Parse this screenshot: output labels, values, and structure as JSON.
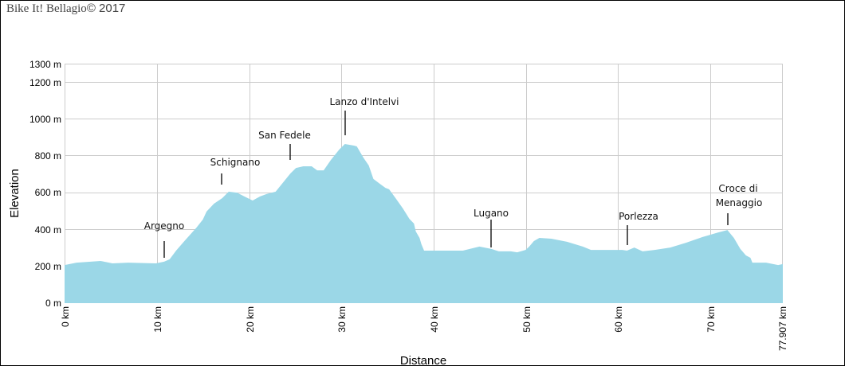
{
  "header": {
    "copyright_brand": "Bike It! Bellagio",
    "copyright_year": "© 2017"
  },
  "colors": {
    "fill": "#9BD7E7",
    "grid": "#cccccc",
    "text": "#000000",
    "border": "#000000"
  },
  "chart_data": {
    "type": "area",
    "title": "",
    "xlabel": "Distance",
    "ylabel": "Elevation",
    "xlim": [
      0,
      77.907
    ],
    "ylim": [
      0,
      1300
    ],
    "grid": true,
    "legend": "none",
    "x_ticks": [
      {
        "value": 0,
        "label": "0 km"
      },
      {
        "value": 10,
        "label": "10 km"
      },
      {
        "value": 20,
        "label": "20 km"
      },
      {
        "value": 30,
        "label": "30 km"
      },
      {
        "value": 40,
        "label": "40 km"
      },
      {
        "value": 50,
        "label": "50 km"
      },
      {
        "value": 60,
        "label": "60 km"
      },
      {
        "value": 70,
        "label": "70 km"
      },
      {
        "value": 77.907,
        "label": "77.907 km"
      }
    ],
    "y_ticks": [
      {
        "value": 0,
        "label": "0 m"
      },
      {
        "value": 200,
        "label": "200 m"
      },
      {
        "value": 400,
        "label": "400 m"
      },
      {
        "value": 600,
        "label": "600 m"
      },
      {
        "value": 800,
        "label": "800 m"
      },
      {
        "value": 1000,
        "label": "1000 m"
      },
      {
        "value": 1200,
        "label": "1200 m"
      },
      {
        "value": 1300,
        "label": "1300 m"
      }
    ],
    "x": [
      0,
      1.3,
      3.9,
      5.2,
      6.9,
      9.9,
      10.8,
      11.4,
      12.1,
      13.0,
      14.3,
      15.0,
      15.4,
      16.2,
      17.1,
      17.8,
      18.7,
      19.5,
      20.4,
      21.2,
      21.9,
      22.9,
      23.8,
      24.5,
      25.1,
      25.9,
      26.8,
      27.4,
      28.1,
      28.9,
      29.8,
      30.4,
      31.4,
      31.7,
      32.4,
      33.0,
      33.5,
      34.2,
      34.8,
      35.2,
      35.9,
      36.7,
      37.4,
      37.9,
      38.1,
      38.5,
      38.7,
      39.0,
      39.5,
      40.2,
      43.2,
      45.0,
      46.3,
      47.1,
      48.4,
      49.1,
      50.0,
      50.4,
      50.9,
      51.5,
      52.8,
      54.5,
      56.2,
      57.1,
      60.5,
      61.0,
      61.8,
      62.7,
      64.0,
      65.7,
      67.4,
      69.2,
      70.9,
      71.9,
      72.6,
      73.3,
      73.9,
      74.4,
      74.6,
      76.1,
      77.4,
      77.907
    ],
    "values": [
      207,
      220,
      229,
      216,
      220,
      216,
      225,
      238,
      285,
      337,
      410,
      454,
      497,
      540,
      570,
      605,
      600,
      579,
      557,
      579,
      592,
      605,
      661,
      704,
      734,
      743,
      743,
      721,
      721,
      778,
      834,
      864,
      855,
      851,
      791,
      747,
      674,
      648,
      626,
      618,
      570,
      514,
      458,
      432,
      389,
      354,
      320,
      285,
      285,
      285,
      285,
      307,
      294,
      281,
      281,
      276,
      289,
      307,
      337,
      354,
      350,
      333,
      307,
      289,
      289,
      285,
      302,
      281,
      289,
      302,
      328,
      359,
      384,
      397,
      354,
      294,
      259,
      246,
      220,
      220,
      207,
      212
    ],
    "annotations": [
      {
        "label": "Argegno",
        "km": 10.8
      },
      {
        "label": "Schignano",
        "km": 17.0
      },
      {
        "label": "San Fedele",
        "km": 24.5
      },
      {
        "label": "Lanzo d'Intelvi",
        "km": 30.4
      },
      {
        "label": "Lugano",
        "km": 46.3
      },
      {
        "label": "Porlezza",
        "km": 61.0
      },
      {
        "label": "Croce di Menaggio",
        "km": 71.9
      }
    ]
  },
  "annotations_text": {
    "argegno": "Argegno",
    "schignano": "Schignano",
    "san_fedele": "San Fedele",
    "lanzo": "Lanzo d'Intelvi",
    "lugano": "Lugano",
    "porlezza": "Porlezza",
    "croce_line1": "Croce di",
    "croce_line2": "Menaggio"
  },
  "axes": {
    "x_title": "Distance",
    "y_title": "Elevation",
    "x_labels": [
      "0 km",
      "10 km",
      "20 km",
      "30 km",
      "40 km",
      "50 km",
      "60 km",
      "70 km",
      "77.907 km"
    ],
    "y_labels": [
      "0 m",
      "200 m",
      "400 m",
      "600 m",
      "800 m",
      "1000 m",
      "1200 m",
      "1300 m"
    ]
  }
}
